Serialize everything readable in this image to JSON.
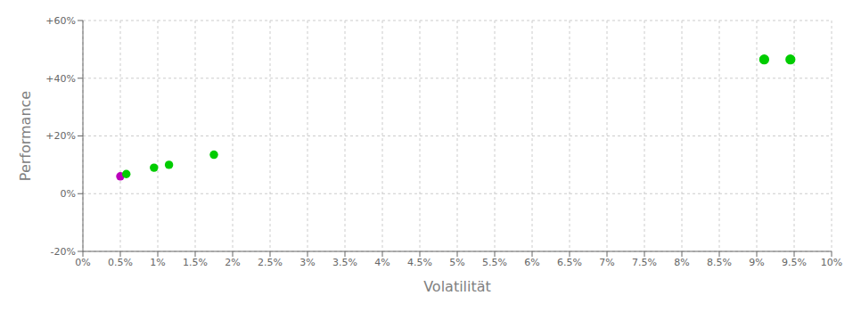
{
  "chart_data": {
    "type": "scatter",
    "x_label": "Volatilität",
    "y_label": "Performance",
    "x": [
      0.005,
      0.0058,
      0.0095,
      0.0115,
      0.0175,
      0.091,
      0.0945
    ],
    "values": [
      0.06,
      0.068,
      0.09,
      0.1,
      0.135,
      0.465,
      0.465
    ],
    "colors": [
      "#bb00bb",
      "#00cc00",
      "#00cc00",
      "#00cc00",
      "#00cc00",
      "#00cc00",
      "#00cc00"
    ],
    "sizes": [
      35,
      35,
      35,
      35,
      35,
      50,
      50
    ],
    "xlim": [
      0,
      0.1
    ],
    "ylim": [
      -0.2,
      0.6
    ],
    "xticks": [
      {
        "value": 0.0,
        "label": "0%"
      },
      {
        "value": 0.005,
        "label": "0.5%"
      },
      {
        "value": 0.01,
        "label": "1%"
      },
      {
        "value": 0.015,
        "label": "1.5%"
      },
      {
        "value": 0.02,
        "label": "2%"
      },
      {
        "value": 0.025,
        "label": "2.5%"
      },
      {
        "value": 0.03,
        "label": "3%"
      },
      {
        "value": 0.035,
        "label": "3.5%"
      },
      {
        "value": 0.04,
        "label": "4%"
      },
      {
        "value": 0.045,
        "label": "4.5%"
      },
      {
        "value": 0.05,
        "label": "5%"
      },
      {
        "value": 0.055,
        "label": "5.5%"
      },
      {
        "value": 0.06,
        "label": "6%"
      },
      {
        "value": 0.065,
        "label": "6.5%"
      },
      {
        "value": 0.07,
        "label": "7%"
      },
      {
        "value": 0.075,
        "label": "7.5%"
      },
      {
        "value": 0.08,
        "label": "8%"
      },
      {
        "value": 0.085,
        "label": "8.5%"
      },
      {
        "value": 0.09,
        "label": "9%"
      },
      {
        "value": 0.095,
        "label": "9.5%"
      },
      {
        "value": 0.1,
        "label": "10%"
      }
    ],
    "yticks": [
      {
        "value": -0.2,
        "label": "-20%"
      },
      {
        "value": 0.0,
        "label": "0%"
      },
      {
        "value": 0.2,
        "label": "+20%"
      },
      {
        "value": 0.4,
        "label": "+40%"
      },
      {
        "value": 0.6,
        "label": "+60%"
      }
    ],
    "grid": true
  }
}
